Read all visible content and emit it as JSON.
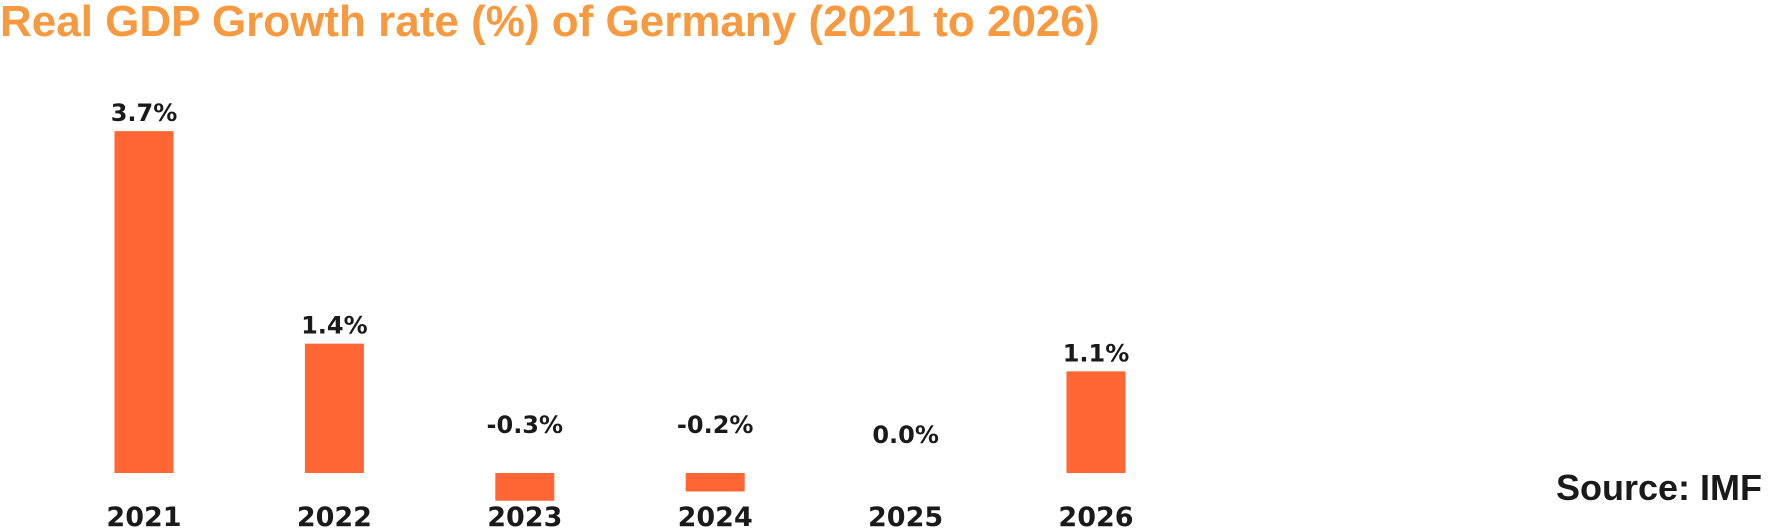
{
  "chart_data": {
    "type": "bar",
    "title": "Real GDP Growth rate (%) of Germany (2021 to 2026)",
    "categories": [
      "2021",
      "2022",
      "2023",
      "2024",
      "2025",
      "2026"
    ],
    "values": [
      3.7,
      1.4,
      -0.3,
      -0.2,
      0.0,
      1.1
    ],
    "data_labels": [
      "3.7%",
      "1.4%",
      "-0.3%",
      "-0.2%",
      "0.0%",
      "1.1%"
    ],
    "xlabel": "",
    "ylabel": "",
    "grid": false,
    "legend": "none",
    "bar_color": "#FF6633",
    "title_color": "#F7993F",
    "text_color": "#1a1a1a"
  },
  "source": "Source: IMF"
}
